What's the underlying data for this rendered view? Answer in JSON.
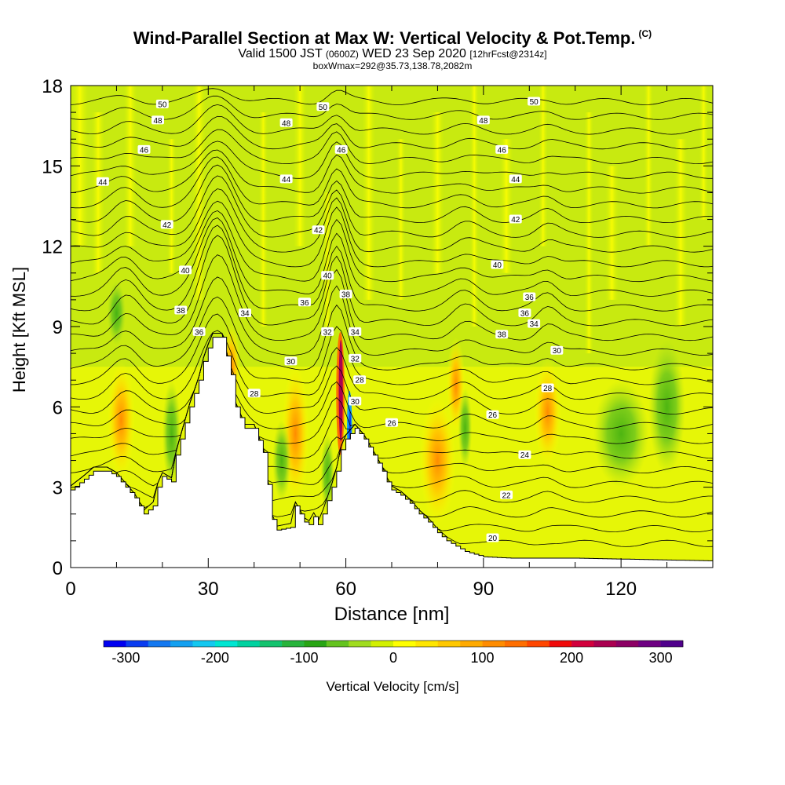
{
  "title": {
    "main": "Wind-Parallel Section at Max W: Vertical Velocity & Pot.Temp.",
    "copyright": "(C)",
    "sub_a": "Valid 1500 JST",
    "sub_b": "(0600Z)",
    "sub_c": "WED 23 Sep 2020",
    "sub_d": "[12hrFcst@2314z]",
    "sub_line3": "boxWmax=292@35.73,138.78,2082m"
  },
  "chart_data": {
    "type": "heatmap",
    "xlabel": "Distance [nm]",
    "ylabel": "Height [Kft MSL]",
    "xlim": [
      0,
      140
    ],
    "ylim": [
      0,
      18
    ],
    "x_ticks": [
      0,
      30,
      60,
      90,
      120
    ],
    "y_ticks": [
      0,
      3,
      6,
      9,
      12,
      15,
      18
    ],
    "colorbar": {
      "label": "Vertical Velocity [cm/s]",
      "ticks": [
        -300,
        -200,
        -100,
        0,
        100,
        200,
        300
      ],
      "range": [
        -325,
        325
      ],
      "colors": [
        "#0000f0",
        "#0a3cf0",
        "#1478f0",
        "#14a0f0",
        "#14c8f0",
        "#00e6d2",
        "#00d2a0",
        "#14c36e",
        "#28b43c",
        "#28a514",
        "#64c31e",
        "#a0dc1e",
        "#d2f000",
        "#ffff00",
        "#ffe600",
        "#ffc800",
        "#ffaa00",
        "#ff8c00",
        "#ff6e00",
        "#ff4600",
        "#f00a0a",
        "#d2003c",
        "#aa0050",
        "#8c0064",
        "#6e0082",
        "#50008c"
      ]
    },
    "theta_contour_labels": [
      {
        "x": 20,
        "y": 17.3,
        "v": 50
      },
      {
        "x": 55,
        "y": 17.2,
        "v": 50
      },
      {
        "x": 101,
        "y": 17.4,
        "v": 50
      },
      {
        "x": 19,
        "y": 16.7,
        "v": 48
      },
      {
        "x": 47,
        "y": 16.6,
        "v": 48
      },
      {
        "x": 90,
        "y": 16.7,
        "v": 48
      },
      {
        "x": 16,
        "y": 15.6,
        "v": 46
      },
      {
        "x": 59,
        "y": 15.6,
        "v": 46
      },
      {
        "x": 94,
        "y": 15.6,
        "v": 46
      },
      {
        "x": 7,
        "y": 14.4,
        "v": 44
      },
      {
        "x": 47,
        "y": 14.5,
        "v": 44
      },
      {
        "x": 97,
        "y": 14.5,
        "v": 44
      },
      {
        "x": 21,
        "y": 12.8,
        "v": 42
      },
      {
        "x": 54,
        "y": 12.6,
        "v": 42
      },
      {
        "x": 97,
        "y": 13.0,
        "v": 42
      },
      {
        "x": 25,
        "y": 11.1,
        "v": 40
      },
      {
        "x": 56,
        "y": 10.9,
        "v": 40
      },
      {
        "x": 93,
        "y": 11.3,
        "v": 40
      },
      {
        "x": 24,
        "y": 9.6,
        "v": 38
      },
      {
        "x": 60,
        "y": 10.2,
        "v": 38
      },
      {
        "x": 94,
        "y": 8.7,
        "v": 38
      },
      {
        "x": 51,
        "y": 9.9,
        "v": 36
      },
      {
        "x": 28,
        "y": 8.8,
        "v": 36
      },
      {
        "x": 100,
        "y": 10.1,
        "v": 36
      },
      {
        "x": 99,
        "y": 9.5,
        "v": 36
      },
      {
        "x": 38,
        "y": 9.5,
        "v": 34
      },
      {
        "x": 101,
        "y": 9.1,
        "v": 34
      },
      {
        "x": 56,
        "y": 8.8,
        "v": 32
      },
      {
        "x": 62,
        "y": 8.8,
        "v": 34
      },
      {
        "x": 62,
        "y": 7.8,
        "v": 32
      },
      {
        "x": 48,
        "y": 7.7,
        "v": 30
      },
      {
        "x": 106,
        "y": 8.1,
        "v": 30
      },
      {
        "x": 62,
        "y": 6.2,
        "v": 30
      },
      {
        "x": 63,
        "y": 7.0,
        "v": 28
      },
      {
        "x": 40,
        "y": 6.5,
        "v": 28
      },
      {
        "x": 104,
        "y": 6.7,
        "v": 28
      },
      {
        "x": 70,
        "y": 5.4,
        "v": 26
      },
      {
        "x": 92,
        "y": 5.7,
        "v": 26
      },
      {
        "x": 99,
        "y": 4.2,
        "v": 24
      },
      {
        "x": 95,
        "y": 2.7,
        "v": 22
      },
      {
        "x": 92,
        "y": 1.1,
        "v": 20
      }
    ]
  }
}
